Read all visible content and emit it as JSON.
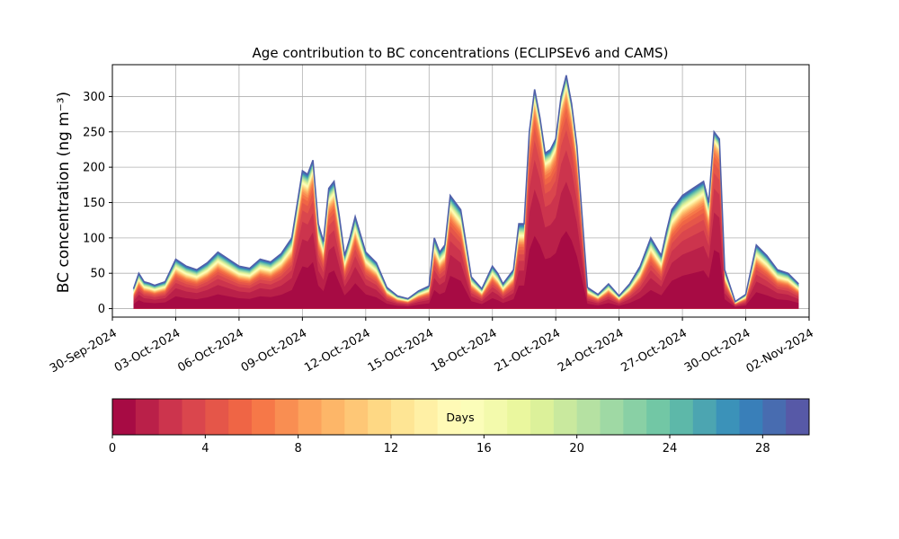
{
  "chart_data": {
    "type": "area",
    "title": "Age contribution to BC concentrations (ECLIPSEv6 and CAMS)",
    "ylabel": "BC concentration (ng m⁻³)",
    "xlabel": "",
    "ylim": [
      -12,
      345
    ],
    "xlim": [
      "2024-09-30T00:00",
      "2024-11-02T00:00"
    ],
    "y_ticks": [
      0,
      50,
      100,
      150,
      200,
      250,
      300
    ],
    "x_ticks": [
      "2024-09-30",
      "2024-10-03",
      "2024-10-06",
      "2024-10-09",
      "2024-10-12",
      "2024-10-15",
      "2024-10-18",
      "2024-10-21",
      "2024-10-24",
      "2024-10-27",
      "2024-10-30",
      "2024-11-02"
    ],
    "x_tick_labels": [
      "30-Sep-2024",
      "03-Oct-2024",
      "06-Oct-2024",
      "09-Oct-2024",
      "12-Oct-2024",
      "15-Oct-2024",
      "18-Oct-2024",
      "21-Oct-2024",
      "24-Oct-2024",
      "27-Oct-2024",
      "30-Oct-2024",
      "02-Nov-2024"
    ],
    "grid": true,
    "stacking": "age classes of 1 day (0-30 days), youngest at bottom",
    "total": {
      "x": [
        "2024-10-01T00:00",
        "2024-10-01T06:00",
        "2024-10-01T12:00",
        "2024-10-01T18:00",
        "2024-10-02T00:00",
        "2024-10-02T12:00",
        "2024-10-03T00:00",
        "2024-10-03T12:00",
        "2024-10-04T00:00",
        "2024-10-04T12:00",
        "2024-10-05T00:00",
        "2024-10-05T12:00",
        "2024-10-06T00:00",
        "2024-10-06T12:00",
        "2024-10-07T00:00",
        "2024-10-07T12:00",
        "2024-10-08T00:00",
        "2024-10-08T12:00",
        "2024-10-09T00:00",
        "2024-10-09T06:00",
        "2024-10-09T12:00",
        "2024-10-09T18:00",
        "2024-10-10T00:00",
        "2024-10-10T06:00",
        "2024-10-10T12:00",
        "2024-10-10T18:00",
        "2024-10-11T00:00",
        "2024-10-11T06:00",
        "2024-10-11T12:00",
        "2024-10-12T00:00",
        "2024-10-12T12:00",
        "2024-10-13T00:00",
        "2024-10-13T12:00",
        "2024-10-14T00:00",
        "2024-10-14T12:00",
        "2024-10-15T00:00",
        "2024-10-15T06:00",
        "2024-10-15T12:00",
        "2024-10-15T18:00",
        "2024-10-16T00:00",
        "2024-10-16T12:00",
        "2024-10-17T00:00",
        "2024-10-17T12:00",
        "2024-10-18T00:00",
        "2024-10-18T06:00",
        "2024-10-18T12:00",
        "2024-10-19T00:00",
        "2024-10-19T06:00",
        "2024-10-19T12:00",
        "2024-10-19T18:00",
        "2024-10-20T00:00",
        "2024-10-20T06:00",
        "2024-10-20T12:00",
        "2024-10-20T18:00",
        "2024-10-21T00:00",
        "2024-10-21T06:00",
        "2024-10-21T12:00",
        "2024-10-21T18:00",
        "2024-10-22T00:00",
        "2024-10-22T12:00",
        "2024-10-23T00:00",
        "2024-10-23T12:00",
        "2024-10-24T00:00",
        "2024-10-24T12:00",
        "2024-10-25T00:00",
        "2024-10-25T12:00",
        "2024-10-26T00:00",
        "2024-10-26T06:00",
        "2024-10-26T12:00",
        "2024-10-27T00:00",
        "2024-10-27T12:00",
        "2024-10-28T00:00",
        "2024-10-28T06:00",
        "2024-10-28T12:00",
        "2024-10-28T18:00",
        "2024-10-29T00:00",
        "2024-10-29T12:00",
        "2024-10-30T00:00",
        "2024-10-30T12:00",
        "2024-10-31T00:00",
        "2024-10-31T12:00",
        "2024-11-01T00:00",
        "2024-11-01T12:00"
      ],
      "y": [
        28,
        50,
        38,
        36,
        33,
        38,
        70,
        60,
        55,
        65,
        80,
        70,
        60,
        57,
        70,
        66,
        78,
        100,
        195,
        190,
        210,
        120,
        95,
        170,
        180,
        130,
        75,
        100,
        130,
        80,
        65,
        30,
        18,
        14,
        25,
        32,
        100,
        80,
        90,
        160,
        140,
        45,
        28,
        60,
        50,
        35,
        55,
        120,
        120,
        250,
        310,
        270,
        220,
        225,
        240,
        300,
        330,
        290,
        230,
        30,
        20,
        35,
        18,
        35,
        60,
        100,
        75,
        110,
        140,
        160,
        170,
        180,
        150,
        250,
        240,
        55,
        10,
        20,
        90,
        75,
        55,
        50,
        35
      ]
    },
    "colorbar": {
      "label": "Days",
      "range": [
        0,
        30
      ],
      "ticks": [
        0,
        4,
        8,
        12,
        16,
        20,
        24,
        28
      ],
      "colormap": "Spectral",
      "n_bins": 30
    }
  }
}
